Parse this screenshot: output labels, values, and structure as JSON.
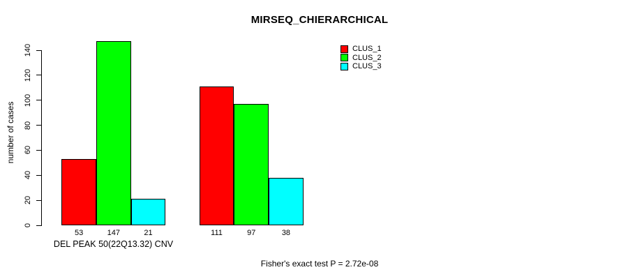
{
  "chart_data": {
    "type": "bar",
    "title": "MIRSEQ_CHIERARCHICAL",
    "ylabel": "number of cases",
    "xlabel": "DEL PEAK 50(22Q13.32) CNV",
    "annotation": "Fisher's exact test P = 2.72e-08",
    "series": [
      {
        "name": "CLUS_1",
        "color": "#ff0000",
        "values": [
          53,
          111
        ]
      },
      {
        "name": "CLUS_2",
        "color": "#00ff00",
        "values": [
          147,
          97
        ]
      },
      {
        "name": "CLUS_3",
        "color": "#00ffff",
        "values": [
          21,
          38
        ]
      }
    ],
    "groups": [
      {
        "bar_labels": [
          "53",
          "147",
          "21"
        ]
      },
      {
        "bar_labels": [
          "111",
          "97",
          "38"
        ]
      }
    ],
    "yticks": [
      0,
      20,
      40,
      60,
      80,
      100,
      120,
      140
    ],
    "ylim": [
      0,
      140
    ],
    "grid": false,
    "legend_position": "top-right",
    "legend_entries": [
      "CLUS_1",
      "CLUS_2",
      "CLUS_3"
    ]
  }
}
